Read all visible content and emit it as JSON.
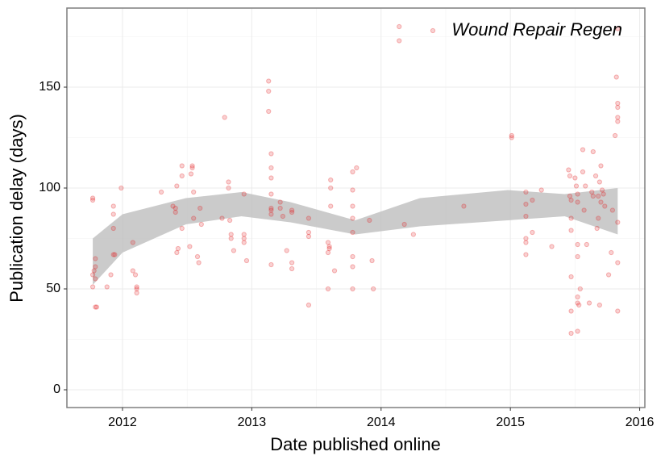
{
  "chart_data": {
    "type": "scatter",
    "x_label": "Date published online",
    "y_label": "Publication delay (days)",
    "xlim": [
      2011.57,
      2016.04
    ],
    "xticks": [
      2012,
      2013,
      2014,
      2015,
      2016
    ],
    "ylim": [
      -8.8,
      189.2
    ],
    "yticks": [
      0,
      50,
      100,
      150
    ],
    "grid": true,
    "legend_position": "top-right",
    "series": [
      {
        "name": "Wound Repair Regen",
        "color": "#e31a1c",
        "x": [
          2011.77,
          2011.77,
          2011.77,
          2011.78,
          2011.79,
          2011.79,
          2011.79,
          2011.8,
          2011.77,
          2011.79,
          2011.88,
          2011.91,
          2011.93,
          2011.94,
          2011.93,
          2011.93,
          2011.99,
          2011.93,
          2012.08,
          2012.08,
          2012.1,
          2012.11,
          2012.11,
          2012.11,
          2012.3,
          2012.39,
          2012.41,
          2012.41,
          2012.42,
          2012.42,
          2012.43,
          2012.46,
          2012.46,
          2012.46,
          2012.52,
          2012.53,
          2012.54,
          2012.54,
          2012.55,
          2012.55,
          2012.58,
          2012.59,
          2012.6,
          2012.61,
          2012.77,
          2012.79,
          2012.82,
          2012.82,
          2012.83,
          2012.84,
          2012.84,
          2012.86,
          2012.94,
          2012.94,
          2012.94,
          2012.94,
          2012.96,
          2013.13,
          2013.13,
          2013.13,
          2013.15,
          2013.15,
          2013.15,
          2013.15,
          2013.15,
          2013.15,
          2013.15,
          2013.15,
          2013.22,
          2013.22,
          2013.24,
          2013.27,
          2013.31,
          2013.31,
          2013.31,
          2013.31,
          2013.44,
          2013.44,
          2013.44,
          2013.44,
          2013.59,
          2013.59,
          2013.6,
          2013.6,
          2013.61,
          2013.61,
          2013.59,
          2013.61,
          2013.64,
          2013.78,
          2013.81,
          2013.78,
          2013.78,
          2013.78,
          2013.78,
          2013.78,
          2013.78,
          2013.78,
          2013.91,
          2013.93,
          2013.94,
          2014.14,
          2014.14,
          2014.18,
          2014.25,
          2014.64,
          2015.01,
          2015.01,
          2015.12,
          2015.12,
          2015.12,
          2015.12,
          2015.12,
          2015.12,
          2015.17,
          2015.17,
          2015.24,
          2015.32,
          2015.45,
          2015.46,
          2015.46,
          2015.47,
          2015.47,
          2015.47,
          2015.47,
          2015.47,
          2015.47,
          2015.52,
          2015.5,
          2015.51,
          2015.52,
          2015.52,
          2015.52,
          2015.52,
          2015.52,
          2015.52,
          2015.53,
          2015.54,
          2015.56,
          2015.56,
          2015.57,
          2015.58,
          2015.59,
          2015.61,
          2015.63,
          2015.64,
          2015.64,
          2015.66,
          2015.67,
          2015.68,
          2015.68,
          2015.69,
          2015.7,
          2015.69,
          2015.71,
          2015.7,
          2015.72,
          2015.73,
          2015.76,
          2015.78,
          2015.79,
          2015.81,
          2015.82,
          2015.83,
          2015.83,
          2015.83,
          2015.83,
          2015.83,
          2015.83,
          2015.83,
          2015.83
        ],
        "values": [
          95,
          94,
          57,
          59,
          61,
          65,
          41,
          41,
          51,
          55,
          51,
          57,
          67,
          67,
          87,
          91,
          100,
          80,
          73,
          59,
          57,
          51,
          50,
          48,
          98,
          91,
          90,
          88,
          101,
          68,
          70,
          111,
          106,
          80,
          71,
          107,
          111,
          110,
          98,
          85,
          66,
          63,
          90,
          82,
          85,
          135,
          103,
          100,
          84,
          77,
          75,
          69,
          97,
          77,
          75,
          73,
          64,
          153,
          148,
          138,
          117,
          110,
          105,
          97,
          90,
          89,
          87,
          62,
          93,
          90,
          86,
          69,
          89,
          88,
          63,
          60,
          85,
          78,
          76,
          42,
          68,
          73,
          71,
          70,
          104,
          100,
          50,
          91,
          59,
          108,
          110,
          99,
          91,
          85,
          78,
          66,
          61,
          50,
          84,
          64,
          50,
          180,
          173,
          82,
          77,
          91,
          126,
          125,
          98,
          92,
          86,
          75,
          73,
          67,
          94,
          78,
          99,
          71,
          109,
          106,
          96,
          94,
          85,
          79,
          56,
          39,
          28,
          29,
          105,
          101,
          97,
          93,
          72,
          66,
          46,
          43,
          42,
          50,
          108,
          119,
          89,
          101,
          72,
          43,
          98,
          96,
          118,
          106,
          80,
          96,
          85,
          103,
          111,
          42,
          99,
          93,
          97,
          91,
          57,
          68,
          89,
          126,
          155,
          142,
          140,
          135,
          133,
          83,
          63,
          39,
          179
        ]
      }
    ],
    "band": {
      "color": "#bebebe",
      "x": [
        2011.77,
        2012.0,
        2012.49,
        2012.92,
        2013.3,
        2013.8,
        2014.3,
        2014.98,
        2015.42,
        2015.83
      ],
      "upper": [
        75,
        87,
        95,
        98,
        93,
        84,
        95,
        99,
        97,
        100
      ],
      "lower": [
        52,
        68,
        82,
        86,
        83,
        77,
        81,
        84,
        86,
        77
      ]
    }
  }
}
